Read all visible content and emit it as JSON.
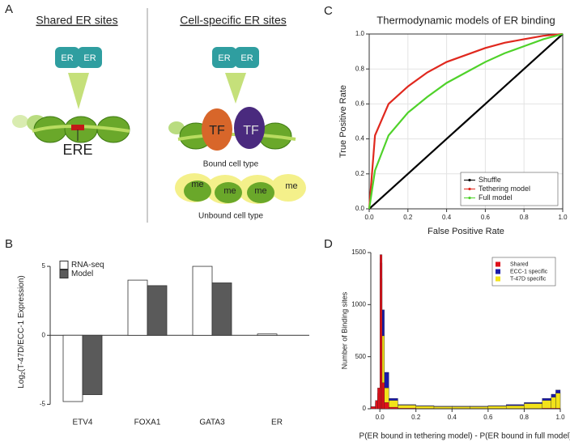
{
  "diagram": {
    "label": "A",
    "left_title": "Shared ER sites",
    "right_title": "Cell-specific ER sites",
    "er_left": [
      "ER",
      "ER"
    ],
    "er_right": [
      "ER",
      "ER"
    ],
    "ere": "ERE",
    "tf": [
      "TF",
      "TF"
    ],
    "bound": "Bound cell type",
    "me": [
      "me",
      "me",
      "me",
      "me"
    ],
    "unbound": "Unbound cell type"
  },
  "chart_data": [
    {
      "type": "bar",
      "label": "B",
      "ylabel_parts": [
        "Log",
        "2",
        "(T-47D/ECC-1 Expression)"
      ],
      "categories": [
        "ETV4",
        "FOXA1",
        "GATA3",
        "ER"
      ],
      "series": [
        {
          "name": "RNA-seq",
          "color": "#ffffff",
          "values": [
            -4.8,
            4.0,
            5.0,
            0.1
          ]
        },
        {
          "name": "Model",
          "color": "#5a5a5a",
          "values": [
            -4.3,
            3.6,
            3.8,
            0
          ]
        }
      ],
      "ylim": [
        -5.5,
        6
      ],
      "yticks": [
        -5,
        0,
        5
      ],
      "legend": "upper left",
      "grid": false
    },
    {
      "type": "line",
      "label": "C",
      "title": "Thermodynamic models of ER binding",
      "xlabel": "False Positive Rate",
      "ylabel": "True Positive Rate",
      "x": [
        0,
        0.03,
        0.1,
        0.2,
        0.3,
        0.4,
        0.5,
        0.6,
        0.7,
        0.8,
        0.9,
        1.0
      ],
      "series": [
        {
          "name": "Shuffle",
          "color": "#000000",
          "values": [
            0,
            0.03,
            0.1,
            0.2,
            0.3,
            0.4,
            0.5,
            0.6,
            0.7,
            0.8,
            0.9,
            1.0
          ]
        },
        {
          "name": "Tethering model",
          "color": "#e0281e",
          "values": [
            0,
            0.42,
            0.6,
            0.7,
            0.78,
            0.84,
            0.88,
            0.92,
            0.95,
            0.97,
            0.99,
            1.0
          ]
        },
        {
          "name": "Full model",
          "color": "#4fd22a",
          "values": [
            0,
            0.22,
            0.42,
            0.55,
            0.64,
            0.72,
            0.78,
            0.84,
            0.89,
            0.93,
            0.97,
            1.0
          ]
        }
      ],
      "xlim": [
        0,
        1
      ],
      "ylim": [
        0,
        1
      ],
      "xticks": [
        {
          "value": 0,
          "label": "0.0"
        },
        0.2,
        0.4,
        0.6,
        0.8,
        {
          "value": 1,
          "label": "1.0"
        }
      ],
      "yticks": [
        {
          "value": 0,
          "label": "0.0"
        },
        0.2,
        0.4,
        0.6,
        0.8,
        {
          "value": 1,
          "label": "1.0"
        }
      ],
      "grid": true,
      "legend": "lower right"
    },
    {
      "type": "histogram",
      "label": "D",
      "xlabel": "P(ER bound in tethering model) - P(ER bound in full model)",
      "ylabel": "Number of Binding sites",
      "bins": [
        -0.05,
        -0.025,
        -0.0125,
        0,
        0.0125,
        0.025,
        0.05,
        0.1,
        0.2,
        0.3,
        0.4,
        0.5,
        0.6,
        0.7,
        0.8,
        0.9,
        0.95,
        0.975,
        1.0
      ],
      "series": [
        {
          "name": "Shared",
          "color": "#e0101a",
          "values": [
            20,
            80,
            200,
            1480,
            250,
            60,
            15,
            5,
            3,
            2,
            2,
            2,
            2,
            2,
            3,
            5,
            5,
            5
          ]
        },
        {
          "name": "ECC-1 specific",
          "color": "#1a1aa8",
          "values": [
            20,
            60,
            150,
            1400,
            950,
            350,
            100,
            40,
            30,
            25,
            25,
            25,
            30,
            40,
            60,
            100,
            140,
            180
          ]
        },
        {
          "name": "T-47D specific",
          "color": "#f2e21a",
          "values": [
            15,
            50,
            120,
            1250,
            700,
            200,
            80,
            35,
            25,
            20,
            20,
            20,
            25,
            30,
            50,
            80,
            110,
            150
          ]
        }
      ],
      "draw_order": [
        1,
        2,
        0
      ],
      "xlim": [
        -0.05,
        1.0
      ],
      "ylim": [
        0,
        1500
      ],
      "xticks": [
        {
          "value": 0,
          "label": "0.0"
        },
        0.2,
        0.4,
        0.6,
        0.8,
        {
          "value": 1,
          "label": "1.0"
        }
      ],
      "yticks": [
        0,
        500,
        1000,
        1500
      ],
      "grid": false,
      "legend": "upper right"
    }
  ]
}
